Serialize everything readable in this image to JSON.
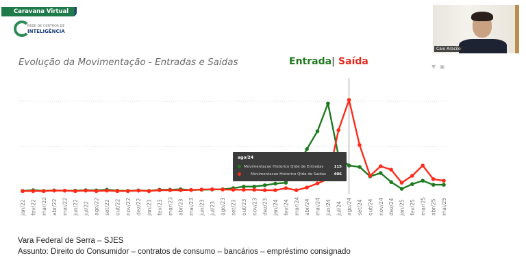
{
  "header": {
    "banner_label": "Caravana Virtual",
    "logo_small": "REDE DE CENTROS DE",
    "logo_big": "INTELIGÊNCIA"
  },
  "webcam": {
    "participant_name": "Caio Aracilo"
  },
  "chart_header": {
    "title": "Evolução da Movimentação - Entradas e Saidas",
    "legend_in": "Entrada",
    "legend_sep": "|",
    "legend_out": "Saída",
    "icons": [
      "filter-icon",
      "expand-icon"
    ]
  },
  "colors": {
    "entradas": "#1f7a1f",
    "saidas": "#ff2a1a",
    "cursor_line": "#999999",
    "tooltip_bg": "#3b3b3b"
  },
  "tooltip": {
    "title": "ago/24",
    "rows": [
      {
        "label": "Movimentacao Historico Qtde de Entradas",
        "value": "115",
        "color": "#1f7a1f"
      },
      {
        "label": "Movimentacao Historico Qtde de Saidas",
        "value": "406",
        "color": "#ff2a1a"
      }
    ]
  },
  "footer": {
    "line1": "Vara Federal de Serra – SJES",
    "line2": "Assunto: Direito do Consumidor – contratos de consumo – bancários – empréstimo consignado"
  },
  "chart_data": {
    "type": "line",
    "title": "Evolução da Movimentação - Entradas e Saidas",
    "xlabel": "",
    "ylabel": "",
    "ylim": [
      0,
      450
    ],
    "grid": true,
    "legend_position": "top-right (title area)",
    "x": [
      "jan/22",
      "fev/22",
      "mar/22",
      "abr/22",
      "mai/22",
      "jun/22",
      "jul/22",
      "ago/22",
      "set/22",
      "out/22",
      "nov/22",
      "dez/22",
      "jan/23",
      "fev/23",
      "mar/23",
      "abr/23",
      "mai/23",
      "jun/23",
      "jul/23",
      "ago/23",
      "set/23",
      "out/23",
      "nov/23",
      "dez/23",
      "jan/24",
      "fev/24",
      "mar/24",
      "abr/24",
      "mai/24",
      "jun/24",
      "jul/24",
      "ago/24",
      "set/24",
      "out/24",
      "nov/24",
      "dez/24",
      "jan/25",
      "fev/25",
      "mar/25",
      "abr/25",
      "mai/25"
    ],
    "series": [
      {
        "name": "Movimentacao Historico Qtde de Entradas",
        "color": "#1f7a1f",
        "values": [
          3,
          6,
          3,
          5,
          4,
          4,
          6,
          5,
          8,
          4,
          3,
          5,
          3,
          8,
          8,
          10,
          7,
          8,
          9,
          10,
          15,
          22,
          22,
          28,
          35,
          39,
          106,
          188,
          267,
          390,
          158,
          115,
          109,
          67,
          82,
          42,
          12,
          33,
          48,
          30,
          30
        ]
      },
      {
        "name": "Movimentacao Historico Qtde de Saidas",
        "color": "#ff2a1a",
        "values": [
          2,
          2,
          2,
          4,
          4,
          2,
          4,
          2,
          4,
          2,
          2,
          4,
          2,
          6,
          6,
          6,
          7,
          9,
          10,
          9,
          8,
          8,
          8,
          6,
          6,
          15,
          6,
          18,
          36,
          55,
          272,
          406,
          206,
          70,
          112,
          97,
          39,
          70,
          115,
          55,
          48
        ]
      }
    ],
    "highlight": {
      "x": "ago/24",
      "entradas": 115,
      "saidas": 406
    }
  }
}
